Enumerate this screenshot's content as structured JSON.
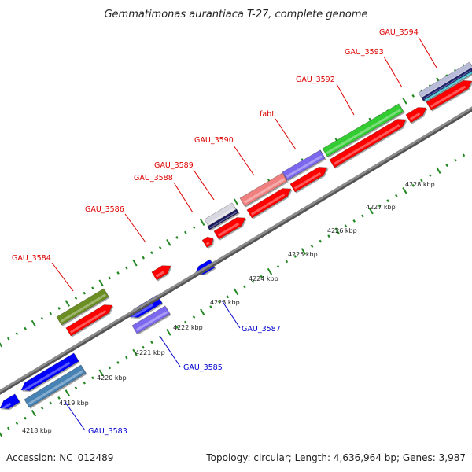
{
  "title": "Gemmatimonas aurantiaca T-27, complete genome",
  "footer": {
    "accession": "Accession: NC_012489",
    "summary": "Topology: circular; Length: 4,636,964 bp; Genes: 3,987"
  },
  "colors": {
    "forward_label": "#dd0000",
    "reverse_label": "#0000cc",
    "forward_cds": "#ff0000",
    "reverse_cds": "#0000ff",
    "backbone": "#8c8c8c",
    "dots": "#228822"
  },
  "ticks": [
    {
      "label": "4218 kbp"
    },
    {
      "label": "4219 kbp"
    },
    {
      "label": "4220 kbp"
    },
    {
      "label": "4221 kbp"
    },
    {
      "label": "4222 kbp"
    },
    {
      "label": "4223 kbp"
    },
    {
      "label": "4224 kbp"
    },
    {
      "label": "4225 kbp"
    },
    {
      "label": "4226 kbp"
    },
    {
      "label": "4227 kbp"
    },
    {
      "label": "4228 kbp"
    }
  ],
  "forward_labels": [
    {
      "text": "GAU_3584"
    },
    {
      "text": "GAU_3586"
    },
    {
      "text": "GAU_3588"
    },
    {
      "text": "GAU_3589"
    },
    {
      "text": "GAU_3590"
    },
    {
      "text": "fabI"
    },
    {
      "text": "GAU_3592"
    },
    {
      "text": "GAU_3593"
    },
    {
      "text": "GAU_3594"
    }
  ],
  "reverse_labels": [
    {
      "text": "GAU_3583"
    },
    {
      "text": "GAU_3585"
    },
    {
      "text": "GAU_3587"
    }
  ]
}
